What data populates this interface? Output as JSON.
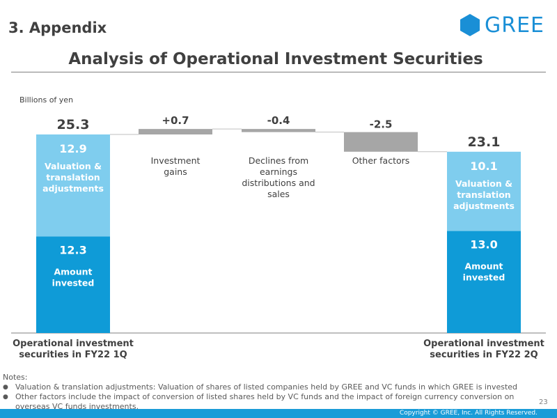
{
  "header": {
    "section_title": "3. Appendix",
    "page_title": "Analysis of Operational Investment Securities",
    "logo_text": "GREE"
  },
  "colors": {
    "brand": "#1a8fd6",
    "amount_invested": "#0f9bd7",
    "valuation": "#7fcdee",
    "change": "#a6a6a6",
    "text": "#404040"
  },
  "chart_data": {
    "type": "bar",
    "subtype": "waterfall",
    "unit": "Billions of yen",
    "y_range": [
      0,
      25.3
    ],
    "start": {
      "category": "Operational investment securities in FY22 1Q",
      "category_lines": [
        "Operational investment",
        "securities in FY22 1Q"
      ],
      "total": 25.3,
      "total_label": "25.3",
      "segments": [
        {
          "name": "Amount invested",
          "value": 12.3,
          "value_label": "12.3",
          "label_lines": [
            "Amount",
            "invested"
          ]
        },
        {
          "name": "Valuation & translation adjustments",
          "value": 12.9,
          "value_label": "12.9",
          "label_lines": [
            "Valuation &",
            "translation",
            "adjustments"
          ]
        }
      ]
    },
    "changes": [
      {
        "category": "Investment gains",
        "category_lines": [
          "Investment",
          "gains"
        ],
        "value": 0.7,
        "value_label": "+0.7"
      },
      {
        "category": "Declines from earnings distributions and sales",
        "category_lines": [
          "Declines from",
          "earnings",
          "distributions and",
          "sales"
        ],
        "value": -0.4,
        "value_label": "-0.4"
      },
      {
        "category": "Other factors",
        "category_lines": [
          "Other factors"
        ],
        "value": -2.5,
        "value_label": "-2.5"
      }
    ],
    "end": {
      "category": "Operational investment securities in FY22 2Q",
      "category_lines": [
        "Operational investment",
        "securities in FY22 2Q"
      ],
      "total": 23.1,
      "total_label": "23.1",
      "segments": [
        {
          "name": "Amount invested",
          "value": 13.0,
          "value_label": "13.0",
          "label_lines": [
            "Amount",
            "invested"
          ]
        },
        {
          "name": "Valuation & translation adjustments",
          "value": 10.1,
          "value_label": "10.1",
          "label_lines": [
            "Valuation &",
            "translation",
            "adjustments"
          ]
        }
      ]
    }
  },
  "notes": {
    "heading": "Notes:",
    "bullet": "●",
    "items": [
      "Valuation & translation adjustments: Valuation of shares of listed companies held by GREE and VC funds in which GREE is invested",
      "Other factors include the impact of conversion of listed shares held by VC funds and the impact of foreign currency conversion on overseas VC funds investments."
    ]
  },
  "footer": {
    "page_number": "23",
    "copyright": "Copyright © GREE, Inc. All Rights Reserved."
  }
}
